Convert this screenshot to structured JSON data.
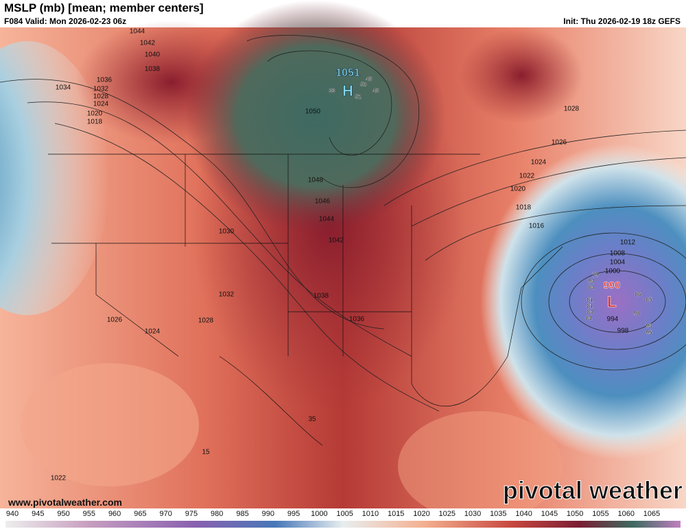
{
  "header": {
    "title": "MSLP (mb) [mean; member centers]",
    "valid": "F084 Valid: Mon 2026-02-23 06z",
    "init": "Init: Thu 2026-02-19 18z GEFS"
  },
  "map": {
    "high": {
      "letter": "H",
      "value": "1051"
    },
    "low": {
      "letter": "L",
      "value": "990"
    },
    "contour_labels": [
      "1044",
      "1042",
      "1040",
      "1038",
      "1036",
      "1034",
      "1032",
      "1028",
      "1024",
      "1020",
      "1018",
      "1030",
      "1032",
      "1028",
      "1026",
      "1024",
      "1022",
      "1050",
      "1048",
      "1046",
      "1044",
      "1042",
      "1038",
      "1036",
      "1028",
      "1026",
      "1024",
      "1022",
      "1020",
      "1018",
      "1016",
      "1012",
      "1008",
      "1004",
      "1000",
      "994",
      "998",
      "35",
      "15"
    ],
    "member_labels": [
      "48",
      "50",
      "48",
      "52",
      "33",
      "79",
      "94",
      "84",
      "81",
      "81",
      "84",
      "84",
      "86",
      "85",
      "98",
      "93",
      "95"
    ]
  },
  "colorbar": {
    "ticks": [
      "940",
      "945",
      "950",
      "955",
      "960",
      "965",
      "970",
      "975",
      "980",
      "985",
      "990",
      "995",
      "1000",
      "1005",
      "1010",
      "1015",
      "1020",
      "1025",
      "1030",
      "1035",
      "1040",
      "1045",
      "1050",
      "1055",
      "1060",
      "1065"
    ]
  },
  "footer": {
    "url": "www.pivotalweather.com",
    "watermark": "pivotal weather"
  }
}
